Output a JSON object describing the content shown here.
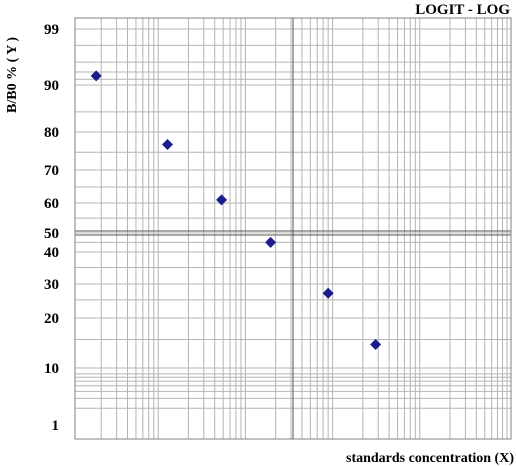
{
  "chart_data": {
    "type": "scatter",
    "title": "LOGIT - LOG",
    "xlabel": "standards concentration (X)",
    "ylabel": "B/B0 % ( Y )",
    "x_scale": "log",
    "y_scale": "logit",
    "y_ticks": [
      {
        "value": 99,
        "label": "99"
      },
      {
        "value": 90,
        "label": "90"
      },
      {
        "value": 80,
        "label": "80"
      },
      {
        "value": 70,
        "label": "70"
      },
      {
        "value": 60,
        "label": "60"
      },
      {
        "value": 50,
        "label": "50"
      },
      {
        "value": 40,
        "label": "40"
      },
      {
        "value": 30,
        "label": "30"
      },
      {
        "value": 20,
        "label": "20"
      },
      {
        "value": 10,
        "label": "10"
      },
      {
        "value": 1,
        "label": "1"
      }
    ],
    "x_decades": 5,
    "grid": true,
    "series": [
      {
        "color": "#1c1c8c",
        "marker": "diamond",
        "points": [
          {
            "x": 1.75,
            "y": 93
          },
          {
            "x": 11.5,
            "y": 77
          },
          {
            "x": 48,
            "y": 61
          },
          {
            "x": 175,
            "y": 45
          },
          {
            "x": 800,
            "y": 27
          },
          {
            "x": 2800,
            "y": 14
          }
        ]
      }
    ]
  }
}
